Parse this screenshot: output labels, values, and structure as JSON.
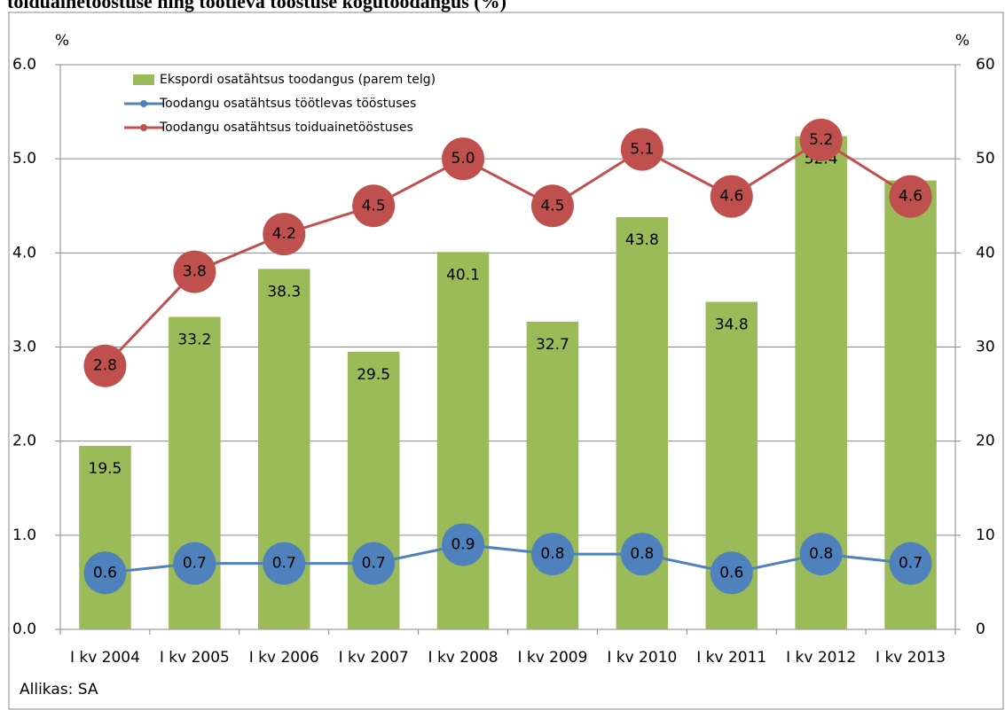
{
  "chart_data": {
    "type": "bar",
    "title": "toiduainetööstuse ning töötleva tööstuse kogutoodangus (%)",
    "source": "Allikas: SA",
    "ylabel": "%",
    "y2label": "%",
    "categories": [
      "I kv 2004",
      "I kv 2005",
      "I kv 2006",
      "I kv 2007",
      "I kv 2008",
      "I kv 2009",
      "I kv 2010",
      "I kv 2011",
      "I kv 2012",
      "I kv 2013"
    ],
    "series": [
      {
        "name": "Ekspordi osatähtsus toodangus (parem telg)",
        "type": "bar",
        "axis": "y2",
        "color": "#9bbb59",
        "values": [
          19.5,
          33.2,
          38.3,
          29.5,
          40.1,
          32.7,
          43.8,
          34.8,
          52.4,
          47.7
        ]
      },
      {
        "name": "Toodangu osatähtsus töötlevas tööstuses",
        "type": "line",
        "color": "#4f81bd",
        "values": [
          0.6,
          0.7,
          0.7,
          0.7,
          0.9,
          0.8,
          0.8,
          0.6,
          0.8,
          0.7
        ]
      },
      {
        "name": "Toodangu osatähtsus toiduainetööstuses",
        "type": "line",
        "color": "#c0504d",
        "values": [
          2.8,
          3.8,
          4.2,
          4.5,
          5,
          4.5,
          5.1,
          4.6,
          5.2,
          4.6
        ],
        "value_labels": [
          "2.8",
          "3.8",
          "4.2",
          "4.5",
          "5.0",
          "4.5",
          "5.1",
          "4.6",
          "5.2",
          "4.6"
        ]
      }
    ],
    "ylim": [
      0,
      6
    ],
    "yticks": [
      {
        "value": 0,
        "label": "0.0"
      },
      {
        "value": 1,
        "label": "1.0"
      },
      {
        "value": 2,
        "label": "2.0"
      },
      {
        "value": 3,
        "label": "3.0"
      },
      {
        "value": 4,
        "label": "4.0"
      },
      {
        "value": 5,
        "label": "5.0"
      },
      {
        "value": 6,
        "label": "6.0"
      }
    ],
    "y2lim": [
      0,
      60
    ],
    "y2ticks": [
      0,
      10,
      20,
      30,
      40,
      50,
      60
    ],
    "grid": true,
    "legend": "top-left"
  }
}
